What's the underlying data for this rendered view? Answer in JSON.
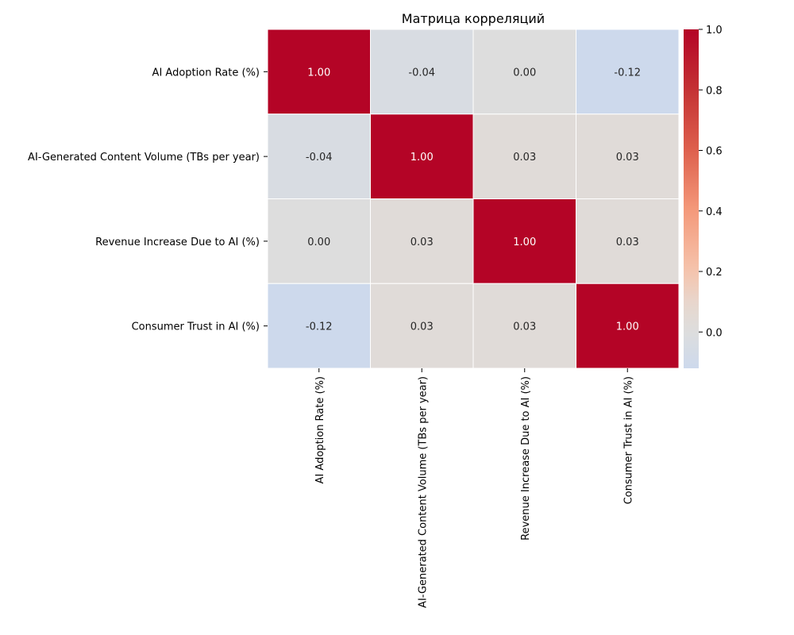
{
  "chart_data": {
    "type": "heatmap",
    "title": "Матрица корреляций",
    "row_labels": [
      "AI Adoption Rate (%)",
      "AI-Generated Content Volume (TBs per year)",
      "Revenue Increase Due to AI (%)",
      "Consumer Trust in AI (%)"
    ],
    "col_labels": [
      "AI Adoption Rate (%)",
      "AI-Generated Content Volume (TBs per year)",
      "Revenue Increase Due to AI (%)",
      "Consumer Trust in AI (%)"
    ],
    "values": [
      [
        1.0,
        -0.04,
        0.0,
        -0.12
      ],
      [
        -0.04,
        1.0,
        0.03,
        0.03
      ],
      [
        0.0,
        0.03,
        1.0,
        0.03
      ],
      [
        -0.12,
        0.03,
        0.03,
        1.0
      ]
    ],
    "value_labels": [
      [
        "1.00",
        "-0.04",
        "0.00",
        "-0.12"
      ],
      [
        "-0.04",
        "1.00",
        "0.03",
        "0.03"
      ],
      [
        "0.00",
        "0.03",
        "1.00",
        "0.03"
      ],
      [
        "-0.12",
        "0.03",
        "0.03",
        "1.00"
      ]
    ],
    "colormap": "coolwarm",
    "center": 0,
    "vmin": -0.12,
    "vmax": 1.0,
    "colorbar_ticks": [
      "0.0",
      "0.2",
      "0.4",
      "0.6",
      "0.8",
      "1.0"
    ],
    "colorbar_tick_values": [
      0.0,
      0.2,
      0.4,
      0.6,
      0.8,
      1.0
    ]
  }
}
